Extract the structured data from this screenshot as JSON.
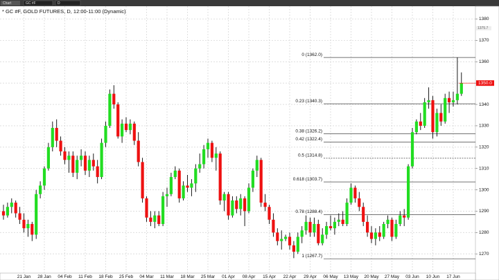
{
  "toolbar": {
    "label": "Chart",
    "symbol": "GC #F",
    "interval": "D"
  },
  "chart_data": {
    "type": "candlestick",
    "title": "* GC #F, GOLD FUTURES, D, 12:00-11:00 (Dynamic)",
    "up_color": "#22dd22",
    "down_color": "#ee1111",
    "ylim": [
      1261,
      1386
    ],
    "yticks": [
      1270,
      1280,
      1290,
      1300,
      1310,
      1320,
      1330,
      1340,
      1350,
      1360,
      1370,
      1380
    ],
    "grid": true,
    "last_price": {
      "value": 1350,
      "label": "1350.0"
    },
    "ref_price": 1375.7,
    "fib_levels": [
      {
        "value": 1362.0,
        "label": "0 (1362.0)"
      },
      {
        "value": 1340.3,
        "label": "0.23 (1340.3)"
      },
      {
        "value": 1326.2,
        "label": "0.38 (1326.2)"
      },
      {
        "value": 1322.4,
        "label": "0.42 (1322.4)"
      },
      {
        "value": 1314.8,
        "label": "0.5 (1314.8)"
      },
      {
        "value": 1303.7,
        "label": "0.618 (1303.7)"
      },
      {
        "value": 1288.4,
        "label": "0.78 (1288.4)"
      },
      {
        "value": 1267.7,
        "label": "1 (1267.7)"
      }
    ],
    "categories": [
      null,
      null,
      null,
      null,
      null,
      "21 Jan",
      null,
      null,
      null,
      null,
      "28 Jan",
      null,
      null,
      null,
      null,
      "04 Feb",
      null,
      null,
      null,
      null,
      "11 Feb",
      null,
      null,
      null,
      null,
      "18 Feb",
      null,
      null,
      null,
      null,
      "25 Feb",
      null,
      null,
      null,
      null,
      "04 Mar",
      null,
      null,
      null,
      null,
      "11 Mar",
      null,
      null,
      null,
      null,
      "18 Mar",
      null,
      null,
      null,
      null,
      "25 Mar",
      null,
      null,
      null,
      null,
      "01 Apr",
      null,
      null,
      null,
      null,
      "08 Apr",
      null,
      null,
      null,
      null,
      "15 Apr",
      null,
      null,
      null,
      null,
      "22 Apr",
      null,
      null,
      null,
      null,
      "29 Apr",
      null,
      null,
      null,
      null,
      "06 May",
      null,
      null,
      null,
      null,
      "13 May",
      null,
      null,
      null,
      null,
      "20 May",
      null,
      null,
      null,
      null,
      "27 May",
      null,
      null,
      null,
      null,
      "03 Jun",
      null,
      null,
      null,
      null,
      "10 Jun",
      null,
      null,
      null,
      null,
      "17 Jun",
      null,
      null
    ],
    "ohlc": [
      [
        1290,
        1293,
        1286,
        1288
      ],
      [
        1288,
        1294,
        1287,
        1292
      ],
      [
        1292,
        1296,
        1289,
        1294
      ],
      [
        1294,
        1295,
        1287,
        1289
      ],
      [
        1289,
        1292,
        1284,
        1286
      ],
      [
        1286,
        1289,
        1280,
        1282
      ],
      [
        1282,
        1286,
        1278,
        1284
      ],
      [
        1284,
        1285,
        1276,
        1279
      ],
      [
        1279,
        1300,
        1277,
        1298
      ],
      [
        1298,
        1304,
        1296,
        1302
      ],
      [
        1302,
        1311,
        1300,
        1310
      ],
      [
        1310,
        1322,
        1309,
        1320
      ],
      [
        1320,
        1332,
        1318,
        1329
      ],
      [
        1329,
        1333,
        1320,
        1323
      ],
      [
        1323,
        1325,
        1316,
        1318
      ],
      [
        1318,
        1320,
        1312,
        1314
      ],
      [
        1314,
        1318,
        1308,
        1316
      ],
      [
        1316,
        1318,
        1306,
        1308
      ],
      [
        1308,
        1316,
        1305,
        1314
      ],
      [
        1314,
        1319,
        1311,
        1316
      ],
      [
        1316,
        1318,
        1307,
        1309
      ],
      [
        1309,
        1316,
        1306,
        1314
      ],
      [
        1314,
        1317,
        1309,
        1311
      ],
      [
        1311,
        1314,
        1303,
        1306
      ],
      [
        1306,
        1324,
        1305,
        1322
      ],
      [
        1322,
        1332,
        1320,
        1330
      ],
      [
        1330,
        1347,
        1329,
        1345
      ],
      [
        1345,
        1349,
        1338,
        1340
      ],
      [
        1340,
        1341,
        1324,
        1325
      ],
      [
        1325,
        1333,
        1322,
        1331
      ],
      [
        1331,
        1334,
        1327,
        1328
      ],
      [
        1328,
        1333,
        1326,
        1331
      ],
      [
        1331,
        1332,
        1321,
        1323
      ],
      [
        1323,
        1327,
        1311,
        1313
      ],
      [
        1313,
        1315,
        1294,
        1296
      ],
      [
        1296,
        1297,
        1285,
        1287
      ],
      [
        1287,
        1290,
        1283,
        1285
      ],
      [
        1285,
        1290,
        1282,
        1288
      ],
      [
        1288,
        1290,
        1283,
        1284
      ],
      [
        1284,
        1299,
        1283,
        1297
      ],
      [
        1297,
        1301,
        1292,
        1298
      ],
      [
        1298,
        1308,
        1297,
        1306
      ],
      [
        1306,
        1311,
        1305,
        1309
      ],
      [
        1309,
        1310,
        1294,
        1296
      ],
      [
        1296,
        1304,
        1295,
        1302
      ],
      [
        1302,
        1307,
        1299,
        1301
      ],
      [
        1301,
        1305,
        1297,
        1303
      ],
      [
        1303,
        1312,
        1299,
        1310
      ],
      [
        1310,
        1317,
        1308,
        1312
      ],
      [
        1312,
        1321,
        1310,
        1319
      ],
      [
        1319,
        1324,
        1315,
        1322
      ],
      [
        1322,
        1323,
        1313,
        1315
      ],
      [
        1315,
        1320,
        1309,
        1317
      ],
      [
        1317,
        1318,
        1293,
        1295
      ],
      [
        1295,
        1299,
        1290,
        1298
      ],
      [
        1298,
        1299,
        1286,
        1288
      ],
      [
        1288,
        1297,
        1287,
        1295
      ],
      [
        1295,
        1297,
        1289,
        1291
      ],
      [
        1291,
        1298,
        1288,
        1296
      ],
      [
        1296,
        1297,
        1283,
        1290
      ],
      [
        1290,
        1303,
        1289,
        1301
      ],
      [
        1301,
        1310,
        1299,
        1309
      ],
      [
        1309,
        1316,
        1306,
        1314
      ],
      [
        1314,
        1315,
        1292,
        1294
      ],
      [
        1294,
        1298,
        1290,
        1292
      ],
      [
        1292,
        1293,
        1284,
        1286
      ],
      [
        1286,
        1289,
        1278,
        1280
      ],
      [
        1280,
        1282,
        1274,
        1276
      ],
      [
        1276,
        1281,
        1272,
        1277
      ],
      [
        1277,
        1279,
        1276,
        1278
      ],
      [
        1278,
        1280,
        1272,
        1274
      ],
      [
        1274,
        1276,
        1268,
        1271
      ],
      [
        1271,
        1280,
        1270,
        1278
      ],
      [
        1278,
        1283,
        1275,
        1281
      ],
      [
        1281,
        1288,
        1279,
        1285
      ],
      [
        1285,
        1287,
        1278,
        1280
      ],
      [
        1280,
        1287,
        1278,
        1284
      ],
      [
        1284,
        1286,
        1274,
        1275
      ],
      [
        1275,
        1282,
        1274,
        1279
      ],
      [
        1279,
        1285,
        1277,
        1283
      ],
      [
        1283,
        1288,
        1281,
        1282
      ],
      [
        1282,
        1287,
        1279,
        1285
      ],
      [
        1285,
        1289,
        1283,
        1286
      ],
      [
        1286,
        1290,
        1283,
        1284
      ],
      [
        1284,
        1296,
        1283,
        1294
      ],
      [
        1294,
        1303,
        1293,
        1301
      ],
      [
        1301,
        1302,
        1294,
        1296
      ],
      [
        1296,
        1299,
        1290,
        1292
      ],
      [
        1292,
        1294,
        1283,
        1285
      ],
      [
        1285,
        1288,
        1278,
        1280
      ],
      [
        1280,
        1283,
        1275,
        1277
      ],
      [
        1277,
        1282,
        1274,
        1280
      ],
      [
        1280,
        1283,
        1276,
        1278
      ],
      [
        1278,
        1285,
        1277,
        1284
      ],
      [
        1284,
        1288,
        1282,
        1286
      ],
      [
        1286,
        1287,
        1276,
        1278
      ],
      [
        1278,
        1286,
        1277,
        1284
      ],
      [
        1284,
        1290,
        1283,
        1288
      ],
      [
        1288,
        1291,
        1283,
        1287
      ],
      [
        1287,
        1312,
        1286,
        1311
      ],
      [
        1311,
        1329,
        1310,
        1327
      ],
      [
        1327,
        1333,
        1326,
        1332
      ],
      [
        1332,
        1336,
        1328,
        1330
      ],
      [
        1330,
        1343,
        1329,
        1341
      ],
      [
        1341,
        1348,
        1338,
        1342
      ],
      [
        1342,
        1344,
        1324,
        1327
      ],
      [
        1327,
        1338,
        1325,
        1336
      ],
      [
        1336,
        1340,
        1330,
        1332
      ],
      [
        1332,
        1345,
        1331,
        1343
      ],
      [
        1343,
        1346,
        1336,
        1341
      ],
      [
        1341,
        1346,
        1339,
        1342
      ],
      [
        1342,
        1362,
        1340,
        1345
      ],
      [
        1345,
        1355,
        1344,
        1350
      ]
    ]
  }
}
